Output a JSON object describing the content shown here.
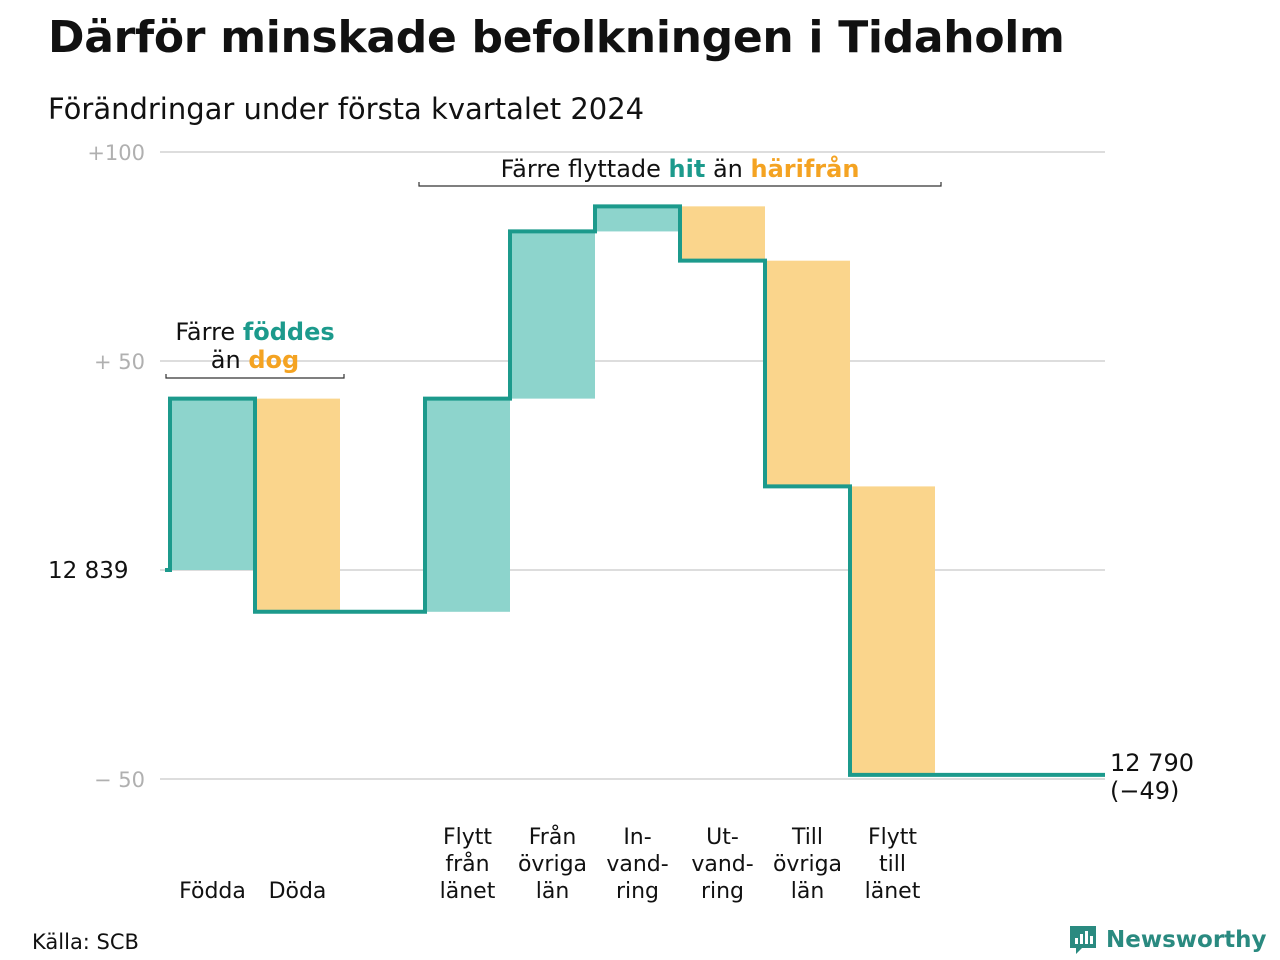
{
  "title": "Därför minskade befolkningen i Tidaholm",
  "subtitle": "Förändringar under första kvartalet 2024",
  "source": "Källa: SCB",
  "brand": "Newsworthy",
  "colors": {
    "line": "#1c9a8c",
    "positive_fill": "#8dd4cc",
    "negative_fill": "#fad58c",
    "accent_orange": "#f4a322",
    "grid": "#dddddd",
    "tick_text": "#b0b0b0"
  },
  "chart_data": {
    "type": "waterfall",
    "start_value": 12839,
    "start_label": "12  839",
    "end_value": 12790,
    "end_label": "12 790",
    "end_change_label": "(−49)",
    "y_ticks": [
      {
        "value": 100,
        "label": "+100"
      },
      {
        "value": 50,
        "label": "+  50"
      },
      {
        "value": -50,
        "label": "−  50"
      }
    ],
    "ylim": [
      -50,
      100
    ],
    "steps": [
      {
        "name": "Födda",
        "lines": [
          "Födda"
        ],
        "change": 41,
        "kind": "in"
      },
      {
        "name": "Döda",
        "lines": [
          "Döda"
        ],
        "change": -51,
        "kind": "out"
      },
      {
        "name": "Flytt från länet",
        "lines": [
          "Flytt",
          "från",
          "länet"
        ],
        "change": 51,
        "kind": "in"
      },
      {
        "name": "Från övriga län",
        "lines": [
          "Från",
          "övriga",
          "län"
        ],
        "change": 40,
        "kind": "in"
      },
      {
        "name": "Invandring",
        "lines": [
          "In-",
          "vand-",
          "ring"
        ],
        "change": 6,
        "kind": "in"
      },
      {
        "name": "Utvandring",
        "lines": [
          "Ut-",
          "vand-",
          "ring"
        ],
        "change": -13,
        "kind": "out"
      },
      {
        "name": "Till övriga län",
        "lines": [
          "Till",
          "övriga",
          "län"
        ],
        "change": -54,
        "kind": "out"
      },
      {
        "name": "Flytt till länet",
        "lines": [
          "Flytt",
          "till",
          "länet"
        ],
        "change": -69,
        "kind": "out"
      }
    ],
    "annotations": [
      {
        "name": "births-vs-deaths",
        "parts": [
          {
            "text": "Färre ",
            "style": "plain"
          },
          {
            "text": "föddes",
            "style": "positive"
          },
          {
            "text": "än ",
            "style": "plain",
            "newline": true
          },
          {
            "text": "dog",
            "style": "negative"
          }
        ]
      },
      {
        "name": "moves-in-vs-out",
        "parts": [
          {
            "text": "Färre flyttade ",
            "style": "plain"
          },
          {
            "text": "hit",
            "style": "positive"
          },
          {
            "text": " än ",
            "style": "plain"
          },
          {
            "text": "härifrån",
            "style": "negative"
          }
        ]
      }
    ]
  }
}
